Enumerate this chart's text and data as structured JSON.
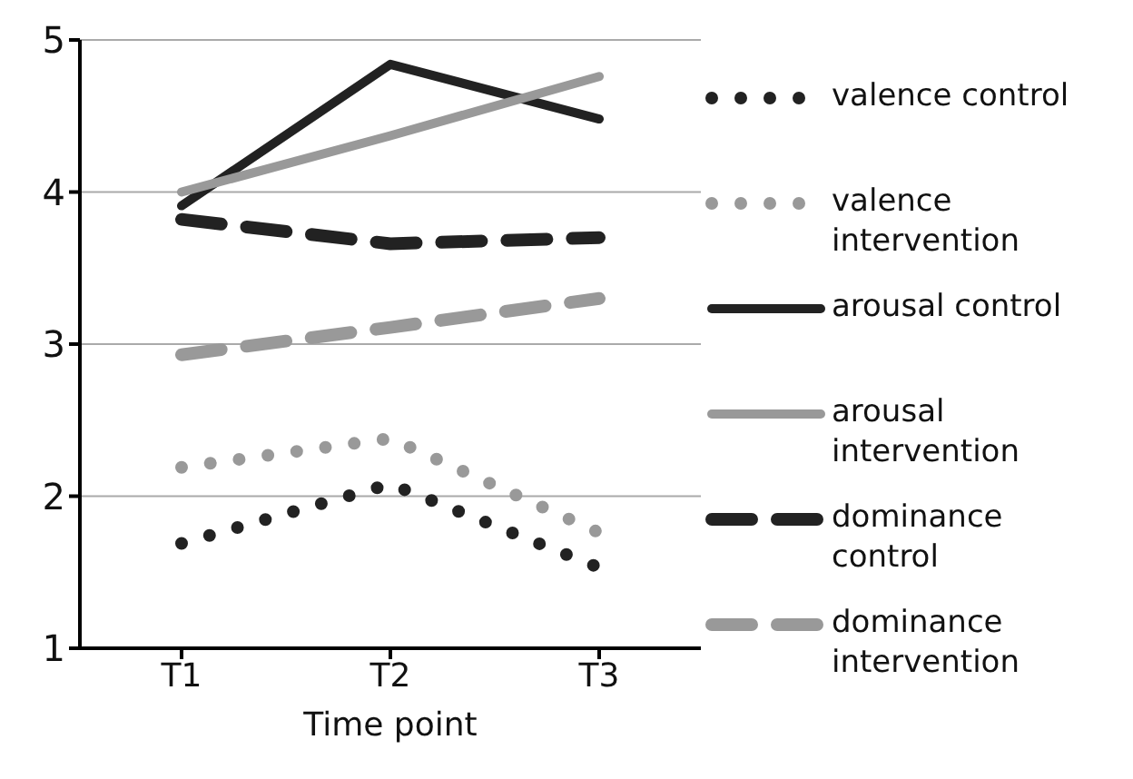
{
  "chart_data": {
    "type": "line",
    "xlabel": "Time point",
    "categories": [
      "T1",
      "T2",
      "T3"
    ],
    "series": [
      {
        "name": "valence control",
        "color": "#222222",
        "line_style": "dotted",
        "values": [
          1.69,
          2.08,
          1.53
        ]
      },
      {
        "name": "valence intervention",
        "color": "#999999",
        "line_style": "dotted",
        "values": [
          2.19,
          2.38,
          1.76
        ]
      },
      {
        "name": "arousal control",
        "color": "#222222",
        "line_style": "solid",
        "values": [
          3.91,
          4.84,
          4.48
        ]
      },
      {
        "name": "arousal intervention",
        "color": "#999999",
        "line_style": "solid",
        "values": [
          4.0,
          4.37,
          4.76
        ]
      },
      {
        "name": "dominance control",
        "color": "#222222",
        "line_style": "dashed",
        "values": [
          3.82,
          3.66,
          3.7
        ]
      },
      {
        "name": "dominance intervention",
        "color": "#999999",
        "line_style": "dashed",
        "values": [
          2.93,
          3.11,
          3.3
        ]
      }
    ],
    "ylim": [
      1,
      5
    ],
    "yticks": [
      1,
      2,
      3,
      4,
      5
    ],
    "grid": "y",
    "legend": "right",
    "marker": "none"
  }
}
